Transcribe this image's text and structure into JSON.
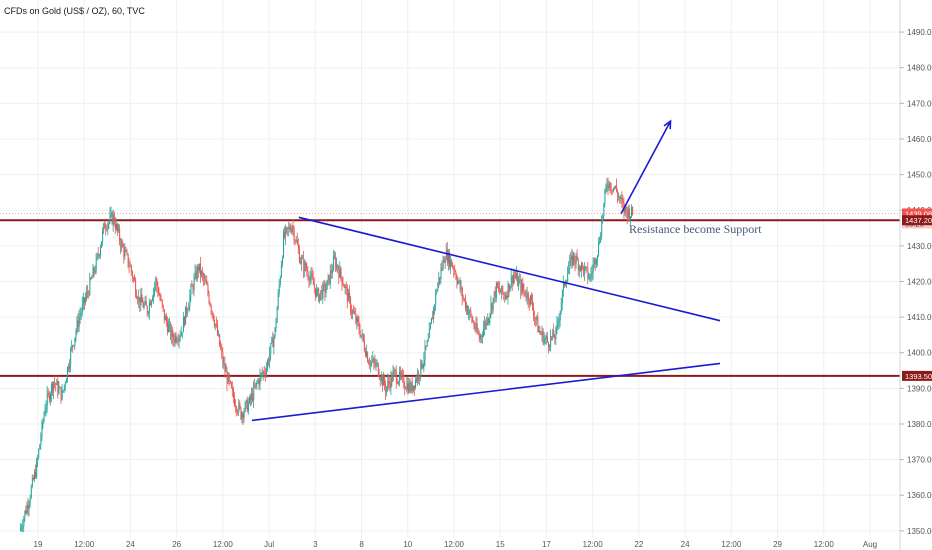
{
  "chart_data": {
    "type": "candlestick",
    "title": "CFDs on Gold (US$ / OZ), 60, TVC",
    "ylim": [
      1348,
      1499
    ],
    "y_ticks": [
      1350,
      1360,
      1370,
      1380,
      1390,
      1400,
      1410,
      1420,
      1430,
      1440,
      1450,
      1460,
      1470,
      1480,
      1490
    ],
    "y_tick_labels": [
      "1350.00",
      "1360.00",
      "1370.00",
      "1380.00",
      "1390.00",
      "1400.00",
      "1410.00",
      "1420.00",
      "1430.00",
      "1440.00",
      "1450.00",
      "1460.00",
      "1470.00",
      "1480.00",
      "1490.00"
    ],
    "x_ticks": [
      "19",
      "12:00",
      "24",
      "26",
      "12:00",
      "Jul",
      "3",
      "8",
      "10",
      "12:00",
      "15",
      "17",
      "12:00",
      "22",
      "24",
      "12:00",
      "29",
      "12:00",
      "Aug"
    ],
    "grid": true,
    "price_path": [
      1350,
      1358,
      1368,
      1385,
      1392,
      1388,
      1400,
      1410,
      1417,
      1425,
      1436,
      1438,
      1430,
      1424,
      1415,
      1412,
      1420,
      1410,
      1404,
      1406,
      1416,
      1424,
      1418,
      1408,
      1396,
      1388,
      1383,
      1386,
      1392,
      1396,
      1406,
      1432,
      1436,
      1426,
      1422,
      1416,
      1418,
      1426,
      1420,
      1412,
      1406,
      1398,
      1396,
      1390,
      1394,
      1392,
      1390,
      1395,
      1403,
      1418,
      1428,
      1424,
      1416,
      1410,
      1404,
      1410,
      1418,
      1416,
      1422,
      1418,
      1415,
      1406,
      1403,
      1405,
      1420,
      1427,
      1424,
      1421,
      1430,
      1448,
      1446,
      1440,
      1439
    ],
    "horizontal_levels": [
      {
        "label": "1437.20",
        "value": 1437.2
      },
      {
        "label": "1393.50",
        "value": 1393.5
      }
    ],
    "last_price": {
      "label": "1439.08",
      "value": 1439.08,
      "countdown": "03:20"
    },
    "trendlines": [
      {
        "name": "resistance",
        "x1": 0.332,
        "y1": 1438,
        "x2": 0.8,
        "y2": 1409
      },
      {
        "name": "support",
        "x1": 0.28,
        "y1": 1381,
        "x2": 0.8,
        "y2": 1397
      }
    ],
    "projection_arrow": {
      "x1": 0.69,
      "y1": 1439,
      "x2": 0.745,
      "y2": 1465
    },
    "annotation": "Resistance become Support",
    "colors": {
      "up": "#26a69a",
      "down": "#ef5350",
      "levels": "#8b1a1a",
      "trendline": "#1a1ad4",
      "price_badge": "#ef5350",
      "level_badge": "#8b1a1a"
    }
  }
}
